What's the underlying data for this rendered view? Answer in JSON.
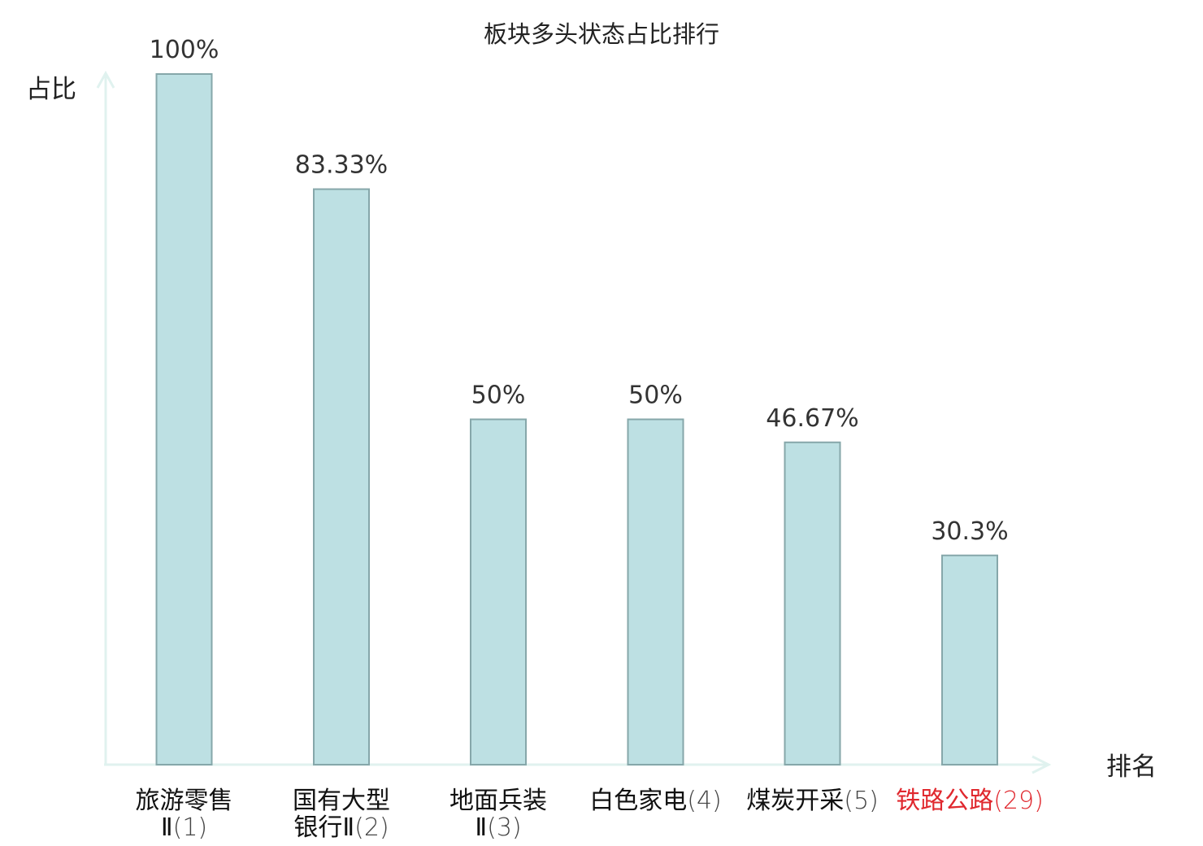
{
  "chart_data": {
    "type": "bar",
    "title": "板块多头状态占比排行",
    "ylabel": "占比",
    "xlabel": "排名",
    "ylim": [
      0,
      100
    ],
    "grid": false,
    "categories": [
      {
        "name_lines": [
          "旅游零售",
          "Ⅱ"
        ],
        "rank": "(1)",
        "highlight": false
      },
      {
        "name_lines": [
          "国有大型",
          "银行Ⅱ"
        ],
        "rank": "(2)",
        "highlight": false
      },
      {
        "name_lines": [
          "地面兵装",
          "Ⅱ"
        ],
        "rank": "(3)",
        "highlight": false
      },
      {
        "name_lines": [
          "白色家电"
        ],
        "rank": "(4)",
        "highlight": false
      },
      {
        "name_lines": [
          "煤炭开采"
        ],
        "rank": "(5)",
        "highlight": false
      },
      {
        "name_lines": [
          "铁路公路"
        ],
        "rank": "(29)",
        "highlight": true
      }
    ],
    "values": [
      100,
      83.33,
      50,
      50,
      46.67,
      30.3
    ],
    "value_labels": [
      "100%",
      "83.33%",
      "50%",
      "50%",
      "46.67%",
      "30.3%"
    ]
  },
  "colors": {
    "bar_fill": "#bde0e3",
    "bar_stroke": "#86a7aa",
    "axis": "#e0f2ef",
    "text": "#333333",
    "highlight": "#e0282e"
  }
}
